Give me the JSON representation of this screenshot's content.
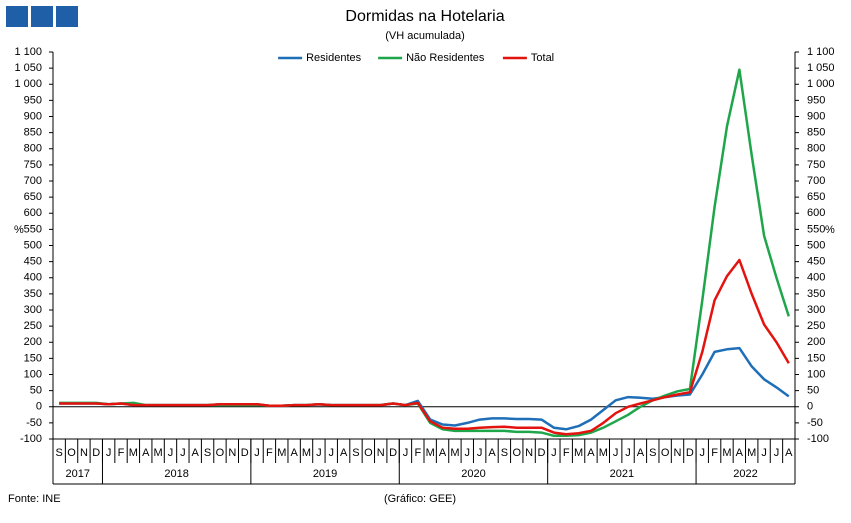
{
  "chart_data": {
    "type": "line",
    "title": "Dormidas na Hotelaria",
    "subtitle": "(VH acumulada)",
    "y_label": "%",
    "y2_label": "%",
    "categories": [
      "S",
      "O",
      "N",
      "D",
      "J",
      "F",
      "M",
      "A",
      "M",
      "J",
      "J",
      "A",
      "S",
      "O",
      "N",
      "D",
      "J",
      "F",
      "M",
      "A",
      "M",
      "J",
      "J",
      "A",
      "S",
      "O",
      "N",
      "D",
      "J",
      "F",
      "M",
      "A",
      "M",
      "J",
      "J",
      "A",
      "S",
      "O",
      "N",
      "D",
      "J",
      "F",
      "M",
      "A",
      "M",
      "J",
      "J",
      "A",
      "S",
      "O",
      "N",
      "D",
      "J",
      "F",
      "M",
      "A",
      "M",
      "J",
      "J",
      "A"
    ],
    "year_groups": [
      {
        "name": "2017",
        "count": 4
      },
      {
        "name": "2018",
        "count": 12
      },
      {
        "name": "2019",
        "count": 12
      },
      {
        "name": "2020",
        "count": 12
      },
      {
        "name": "2021",
        "count": 12
      },
      {
        "name": "2022",
        "count": 8
      }
    ],
    "series": [
      {
        "name": "Residentes",
        "color": "#1f6fb8",
        "values": [
          10,
          10,
          10,
          10,
          8,
          10,
          5,
          5,
          5,
          5,
          5,
          5,
          5,
          8,
          8,
          8,
          8,
          3,
          3,
          5,
          5,
          8,
          5,
          5,
          5,
          5,
          5,
          10,
          5,
          18,
          -40,
          -55,
          -58,
          -50,
          -40,
          -36,
          -36,
          -38,
          -38,
          -40,
          -65,
          -70,
          -60,
          -40,
          -10,
          20,
          30,
          28,
          25,
          30,
          35,
          38,
          100,
          170,
          178,
          182,
          125,
          85,
          60,
          32
        ]
      },
      {
        "name": "Não Residentes",
        "color": "#1fa64a",
        "values": [
          12,
          12,
          12,
          12,
          8,
          10,
          12,
          5,
          5,
          5,
          5,
          5,
          5,
          5,
          5,
          5,
          5,
          3,
          3,
          5,
          5,
          8,
          5,
          5,
          5,
          5,
          5,
          10,
          5,
          10,
          -50,
          -70,
          -75,
          -75,
          -75,
          -75,
          -75,
          -78,
          -78,
          -80,
          -90,
          -90,
          -88,
          -80,
          -65,
          -45,
          -25,
          0,
          20,
          35,
          48,
          55,
          330,
          620,
          870,
          1045,
          780,
          530,
          400,
          280
        ]
      },
      {
        "name": "Total",
        "color": "#e3130f",
        "values": [
          10,
          10,
          10,
          10,
          8,
          10,
          5,
          5,
          5,
          5,
          5,
          5,
          5,
          8,
          8,
          8,
          8,
          3,
          3,
          5,
          5,
          8,
          5,
          5,
          5,
          5,
          5,
          10,
          5,
          12,
          -45,
          -65,
          -68,
          -68,
          -65,
          -63,
          -62,
          -65,
          -65,
          -65,
          -80,
          -85,
          -82,
          -75,
          -50,
          -20,
          0,
          10,
          20,
          30,
          38,
          45,
          170,
          330,
          405,
          455,
          350,
          255,
          200,
          135
        ]
      }
    ],
    "ylim": [
      -100,
      1100
    ],
    "y2lim": [
      -100,
      1100
    ],
    "yticks": [
      -100,
      -50,
      0,
      50,
      100,
      150,
      200,
      250,
      300,
      350,
      400,
      450,
      500,
      550,
      600,
      650,
      700,
      750,
      800,
      850,
      900,
      950,
      {
        "value": 1000,
        "label": "1 000"
      },
      {
        "value": 1050,
        "label": "1 050"
      },
      {
        "value": 1100,
        "label": "1 100"
      }
    ],
    "y2ticks": [
      -100,
      -50,
      0,
      50,
      100,
      150,
      200,
      250,
      300,
      350,
      400,
      450,
      500,
      550,
      600,
      650,
      700,
      750,
      800,
      850,
      900,
      950,
      {
        "value": 1000,
        "label": "1 000"
      },
      {
        "value": 1050,
        "label": "1 050"
      },
      {
        "value": 1100,
        "label": "1 100"
      }
    ],
    "grid": false,
    "legend": "top",
    "source": "Fonte: INE",
    "credit": "(Gráfico: GEE)"
  }
}
